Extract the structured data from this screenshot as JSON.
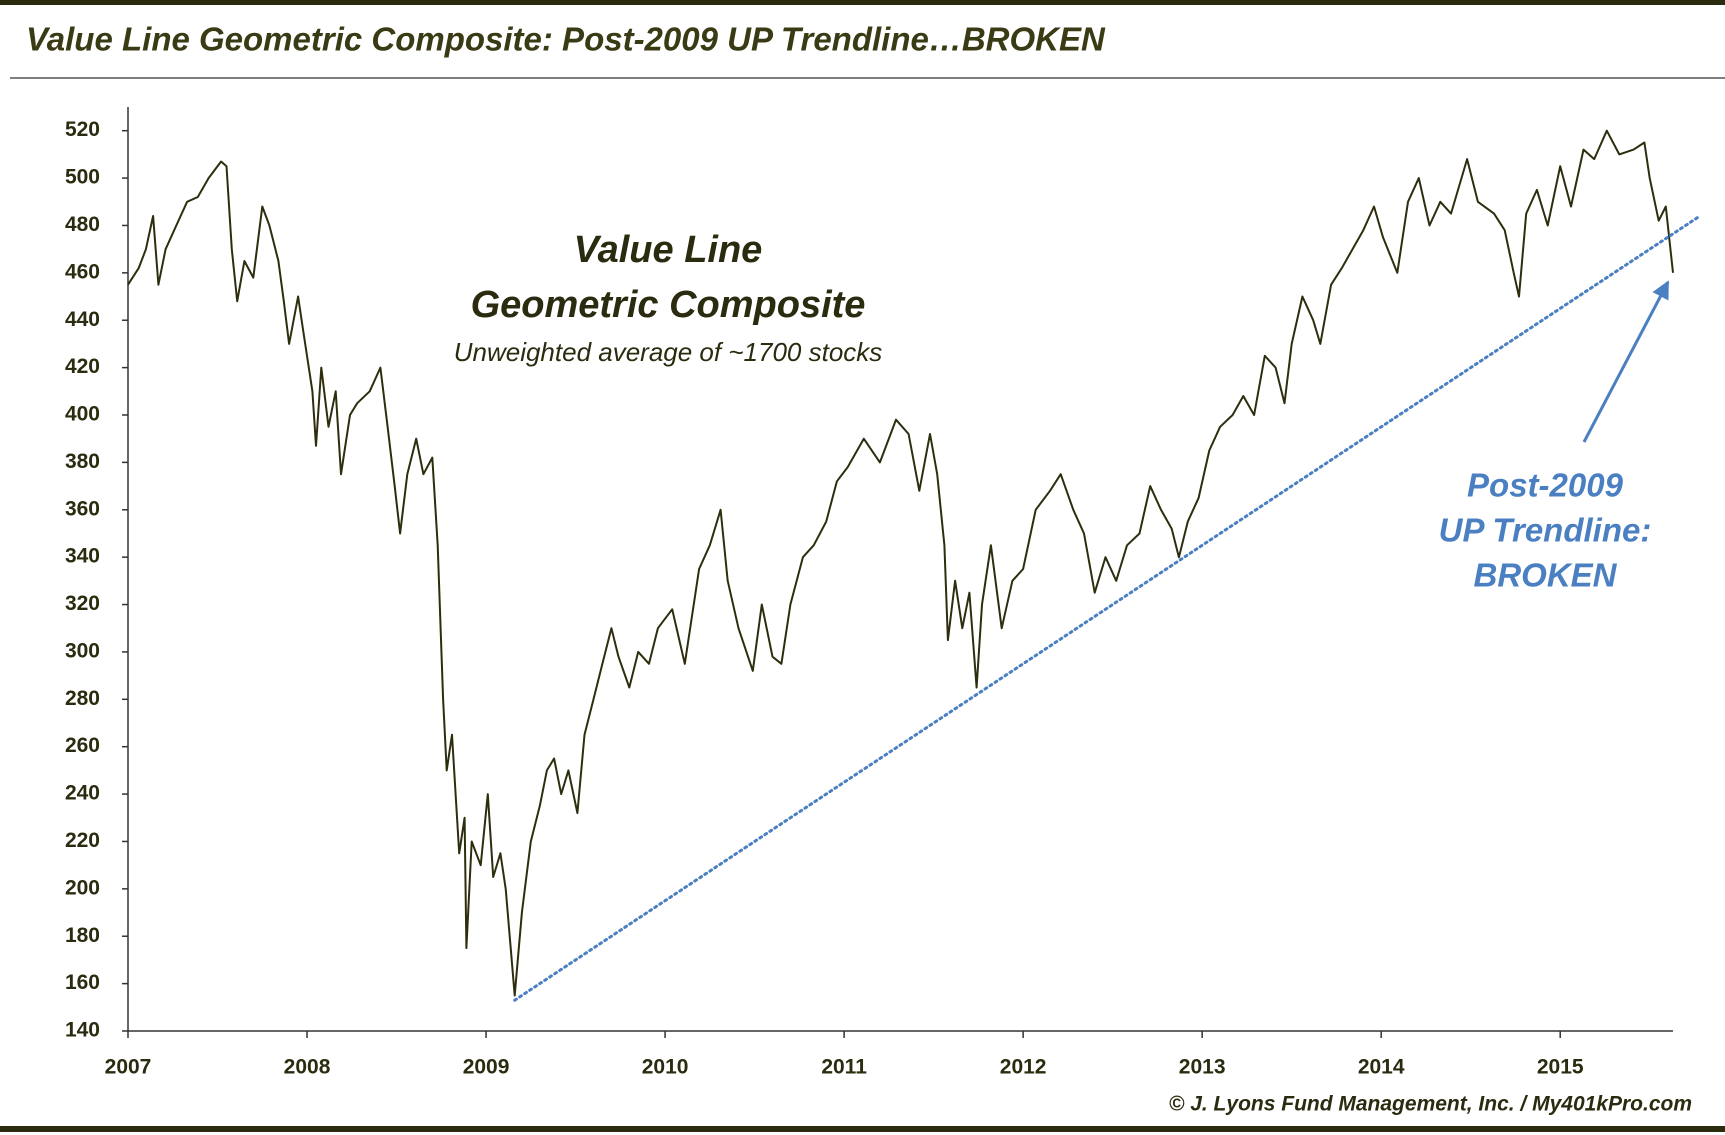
{
  "chart_data": {
    "type": "line",
    "title": "Value Line Geometric Composite: Post-2009 UP Trendline…BROKEN",
    "annotations": [
      "Value Line",
      "Geometric Composite",
      "Unweighted average of ~1700 stocks",
      "Post-2009",
      "UP Trendline:",
      "BROKEN",
      "© J. Lyons Fund Management, Inc. / My401kPro.com"
    ],
    "x": [
      2007.0,
      2007.06,
      2007.1,
      2007.14,
      2007.17,
      2007.21,
      2007.27,
      2007.33,
      2007.39,
      2007.45,
      2007.52,
      2007.55,
      2007.58,
      2007.61,
      2007.65,
      2007.7,
      2007.75,
      2007.79,
      2007.84,
      2007.87,
      2007.9,
      2007.95,
      2007.98,
      2008.03,
      2008.05,
      2008.08,
      2008.12,
      2008.16,
      2008.19,
      2008.24,
      2008.28,
      2008.35,
      2008.41,
      2008.45,
      2008.49,
      2008.52,
      2008.56,
      2008.61,
      2008.65,
      2008.7,
      2008.73,
      2008.76,
      2008.78,
      2008.81,
      2008.85,
      2008.88,
      2008.89,
      2008.92,
      2008.97,
      2009.01,
      2009.04,
      2009.08,
      2009.11,
      2009.16,
      2009.2,
      2009.25,
      2009.3,
      2009.34,
      2009.38,
      2009.42,
      2009.46,
      2009.51,
      2009.55,
      2009.6,
      2009.65,
      2009.7,
      2009.74,
      2009.8,
      2009.85,
      2009.91,
      2009.96,
      2010.04,
      2010.11,
      2010.19,
      2010.25,
      2010.31,
      2010.35,
      2010.41,
      2010.49,
      2010.54,
      2010.6,
      2010.65,
      2010.7,
      2010.77,
      2010.83,
      2010.9,
      2010.96,
      2011.02,
      2011.11,
      2011.2,
      2011.29,
      2011.36,
      2011.42,
      2011.48,
      2011.52,
      2011.56,
      2011.58,
      2011.62,
      2011.66,
      2011.7,
      2011.74,
      2011.77,
      2011.82,
      2011.88,
      2011.94,
      2012.0,
      2012.07,
      2012.15,
      2012.21,
      2012.28,
      2012.34,
      2012.4,
      2012.46,
      2012.52,
      2012.58,
      2012.65,
      2012.71,
      2012.77,
      2012.83,
      2012.87,
      2012.92,
      2012.98,
      2013.04,
      2013.1,
      2013.17,
      2013.23,
      2013.29,
      2013.35,
      2013.41,
      2013.46,
      2013.5,
      2013.56,
      2013.62,
      2013.66,
      2013.72,
      2013.78,
      2013.84,
      2013.9,
      2013.96,
      2014.01,
      2014.09,
      2014.15,
      2014.21,
      2014.27,
      2014.33,
      2014.39,
      2014.48,
      2014.54,
      2014.63,
      2014.69,
      2014.74,
      2014.77,
      2014.81,
      2014.87,
      2014.93,
      2015.0,
      2015.06,
      2015.13,
      2015.19,
      2015.26,
      2015.33,
      2015.41,
      2015.47,
      2015.5,
      2015.55,
      2015.59,
      2015.63
    ],
    "series": [
      {
        "color": "#2e2e0e",
        "values": [
          455,
          462,
          470,
          484,
          455,
          470,
          480,
          490,
          492,
          500,
          507,
          505,
          470,
          448,
          465,
          458,
          488,
          480,
          465,
          448,
          430,
          450,
          435,
          410,
          387,
          420,
          395,
          410,
          375,
          400,
          405,
          410,
          420,
          395,
          370,
          350,
          375,
          390,
          375,
          382,
          345,
          280,
          250,
          265,
          215,
          230,
          175,
          220,
          210,
          240,
          205,
          215,
          200,
          155,
          190,
          220,
          235,
          250,
          255,
          240,
          250,
          232,
          265,
          280,
          295,
          310,
          298,
          285,
          300,
          295,
          310,
          318,
          295,
          335,
          345,
          360,
          330,
          310,
          292,
          320,
          298,
          295,
          320,
          340,
          345,
          355,
          372,
          378,
          390,
          380,
          398,
          392,
          368,
          392,
          375,
          345,
          305,
          330,
          310,
          325,
          285,
          320,
          345,
          310,
          330,
          335,
          360,
          368,
          375,
          360,
          350,
          325,
          340,
          330,
          345,
          350,
          370,
          360,
          352,
          340,
          355,
          365,
          385,
          395,
          400,
          408,
          400,
          425,
          420,
          405,
          430,
          450,
          440,
          430,
          455,
          462,
          470,
          478,
          488,
          475,
          460,
          490,
          500,
          480,
          490,
          485,
          508,
          490,
          485,
          478,
          460,
          450,
          485,
          495,
          480,
          505,
          488,
          512,
          508,
          520,
          510,
          512,
          515,
          500,
          482,
          488,
          460
        ]
      }
    ],
    "trendline": {
      "x": [
        2009.16,
        2015.78
      ],
      "values": [
        153,
        484
      ],
      "color": "#4a7fc1",
      "style": "dotted"
    },
    "xlim": [
      2007,
      2015.63
    ],
    "xticks": [
      2007,
      2008,
      2009,
      2010,
      2011,
      2012,
      2013,
      2014,
      2015
    ],
    "ylim": [
      140,
      530
    ],
    "yticks": [
      140,
      160,
      180,
      200,
      220,
      240,
      260,
      280,
      300,
      320,
      340,
      360,
      380,
      400,
      420,
      440,
      460,
      480,
      500,
      520
    ],
    "grid": false
  }
}
